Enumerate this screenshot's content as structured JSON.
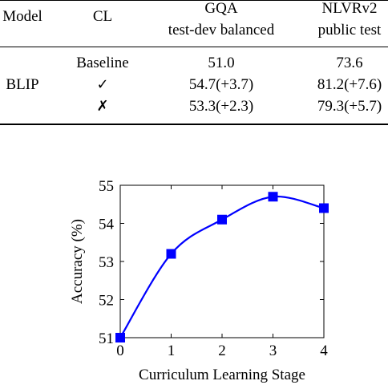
{
  "table": {
    "headers": {
      "model": "Model",
      "cl": "CL",
      "gqa_line1": "GQA",
      "gqa_line2": "test-dev balanced",
      "nlvr_line1": "NLVRv2",
      "nlvr_line2": "public test"
    },
    "model_name": "BLIP",
    "rows": [
      {
        "cl": "Baseline",
        "gqa": "51.0",
        "nlvr": "73.6"
      },
      {
        "cl": "✓",
        "gqa": "54.7(+3.7)",
        "nlvr": "81.2(+7.6)"
      },
      {
        "cl": "✗",
        "gqa": "53.3(+2.3)",
        "nlvr": "79.3(+5.7)"
      }
    ]
  },
  "chart_data": {
    "type": "line",
    "x": [
      0,
      1,
      2,
      3,
      4
    ],
    "series": [
      {
        "values": [
          51.0,
          53.2,
          54.1,
          54.7,
          54.4
        ],
        "color": "#0000ff",
        "marker": "square"
      }
    ],
    "xlabel": "Curriculum Learning Stage",
    "ylabel": "Accuracy (%)",
    "xlim": [
      0,
      4
    ],
    "ylim": [
      51,
      55
    ],
    "xticks": [
      "0",
      "1",
      "2",
      "3",
      "4"
    ],
    "yticks": [
      "51",
      "52",
      "53",
      "54",
      "55"
    ],
    "grid": false
  }
}
